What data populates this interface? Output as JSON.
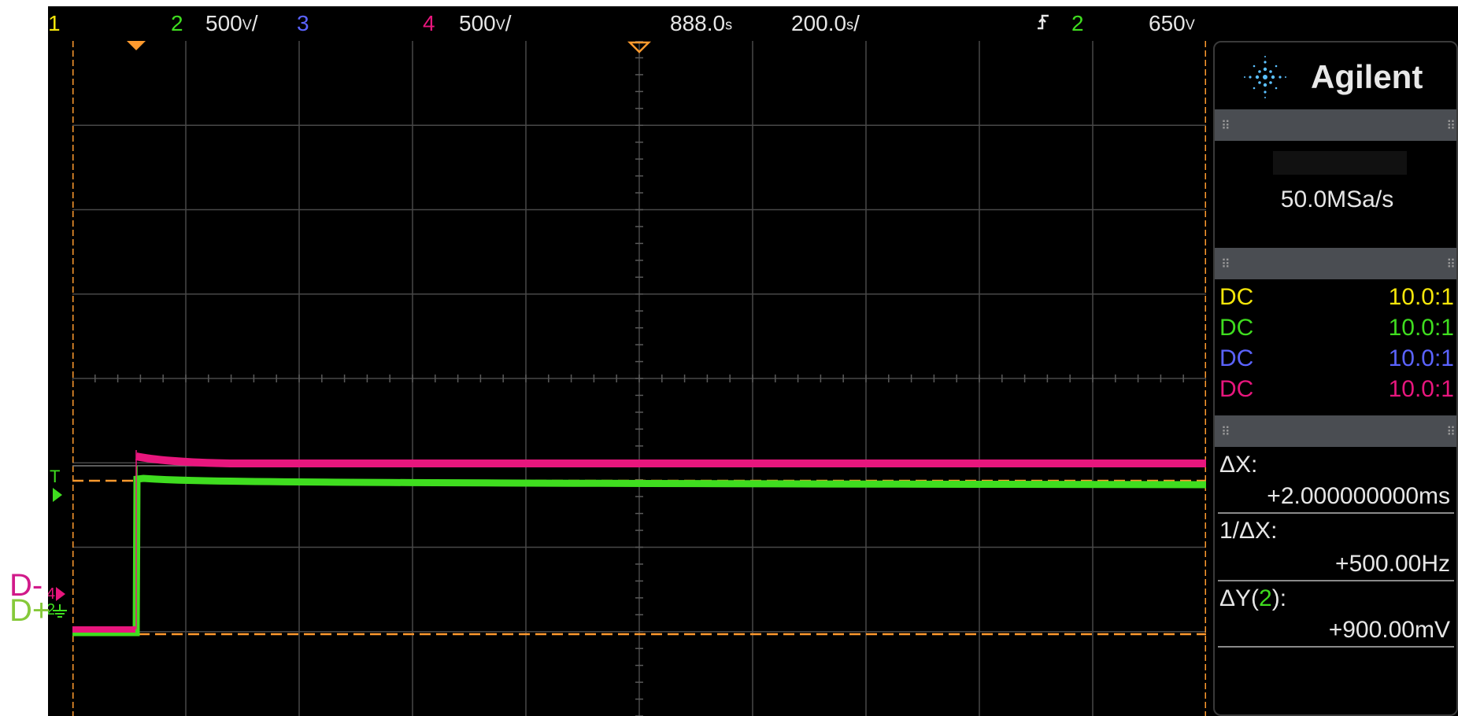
{
  "topbar": {
    "ch1": "1",
    "ch2": "2",
    "ch2_scale": "500",
    "ch2_unit": "V",
    "ch3": "3",
    "ch4": "4",
    "ch4_scale": "500",
    "ch4_unit": "V",
    "delay": "888.0",
    "delay_unit": "s",
    "timebase": "200.0",
    "timebase_unit": "s",
    "trigger_icon": "trigger-edge-icon",
    "trigger_channel": "2",
    "trigger_level": "650",
    "trigger_unit": "V"
  },
  "colors": {
    "ch1": "#f5e60a",
    "ch2": "#3fdd1f",
    "ch3": "#5b63ff",
    "ch4": "#e8167d",
    "accent": "#ff9a2e",
    "grid": "#4a4a4a"
  },
  "panel": {
    "brand": "Agilent",
    "sample_rate": "50.0MSa/s",
    "coupling": [
      {
        "coupling": "DC",
        "probe": "10.0:1",
        "channel": "1"
      },
      {
        "coupling": "DC",
        "probe": "10.0:1",
        "channel": "2"
      },
      {
        "coupling": "DC",
        "probe": "10.0:1",
        "channel": "3"
      },
      {
        "coupling": "DC",
        "probe": "10.0:1",
        "channel": "4"
      }
    ],
    "measurements": {
      "dx_label": "ΔX:",
      "dx_value": "+2.000000000ms",
      "inv_dx_label": "1/ΔX:",
      "inv_dx_value": "+500.00Hz",
      "dy_label_prefix": "ΔY(",
      "dy_channel": "2",
      "dy_label_suffix": "):",
      "dy_value": "+900.00mV"
    }
  },
  "markers": {
    "trigger_marker": "T",
    "ground_marker_4": "4",
    "ground_marker_2": "2"
  },
  "labels": {
    "d_minus": "D-",
    "d_plus": "D+"
  }
}
